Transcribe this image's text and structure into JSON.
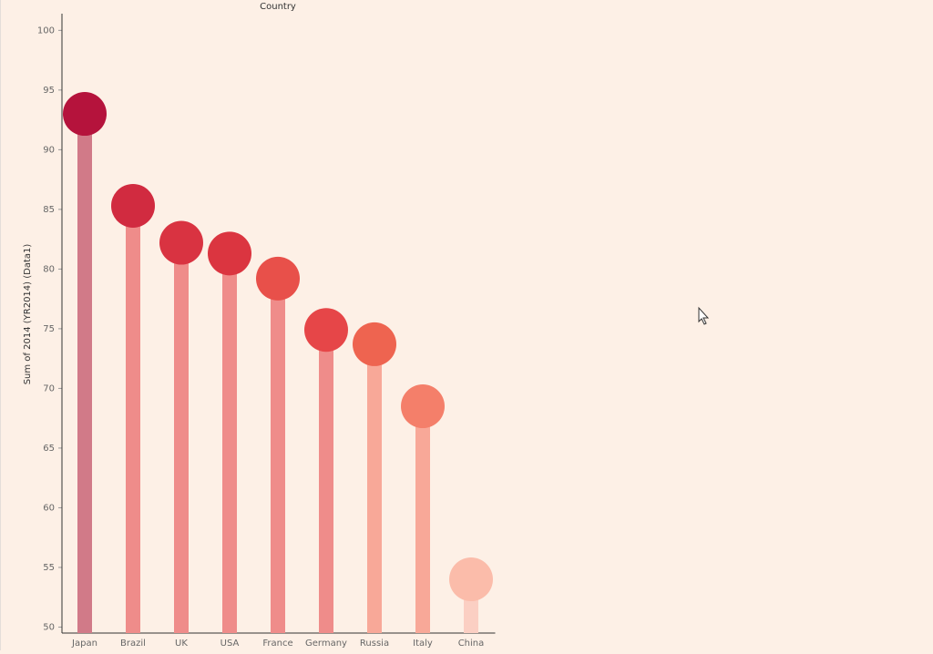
{
  "chart_data": {
    "type": "lollipop",
    "title": "Country",
    "y_label": "Sum of 2014 (YR2014) (Data1)",
    "categories": [
      "Japan",
      "Brazil",
      "UK",
      "USA",
      "France",
      "Germany",
      "Russia",
      "Italy",
      "China"
    ],
    "values": [
      93.0,
      85.3,
      82.2,
      81.3,
      79.2,
      74.9,
      73.7,
      68.5,
      54.0
    ],
    "colors": [
      "#b5133c",
      "#d12b40",
      "#d93341",
      "#db3540",
      "#e8504a",
      "#e64648",
      "#ee6450",
      "#f47f6a",
      "#fbbcaa"
    ],
    "stem_colors": [
      "#d17a88",
      "#ef8c8a",
      "#ef8c8a",
      "#ef8c8a",
      "#ef8c8a",
      "#ef8c8a",
      "#f8a898",
      "#f8a898",
      "#fbcfc3"
    ],
    "ylim": [
      49.5,
      101.4
    ],
    "yticks": [
      50,
      55,
      60,
      65,
      70,
      75,
      80,
      85,
      90,
      95,
      100
    ]
  }
}
